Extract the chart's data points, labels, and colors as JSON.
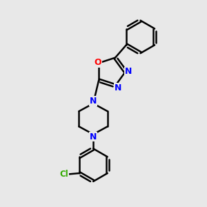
{
  "bg_color": "#e8e8e8",
  "bond_color": "#000000",
  "N_color": "#0000ff",
  "O_color": "#ff0000",
  "Cl_color": "#33aa00",
  "line_width": 1.8,
  "figsize": [
    3.0,
    3.0
  ],
  "dpi": 100,
  "xlim": [
    0,
    10
  ],
  "ylim": [
    0,
    10
  ]
}
